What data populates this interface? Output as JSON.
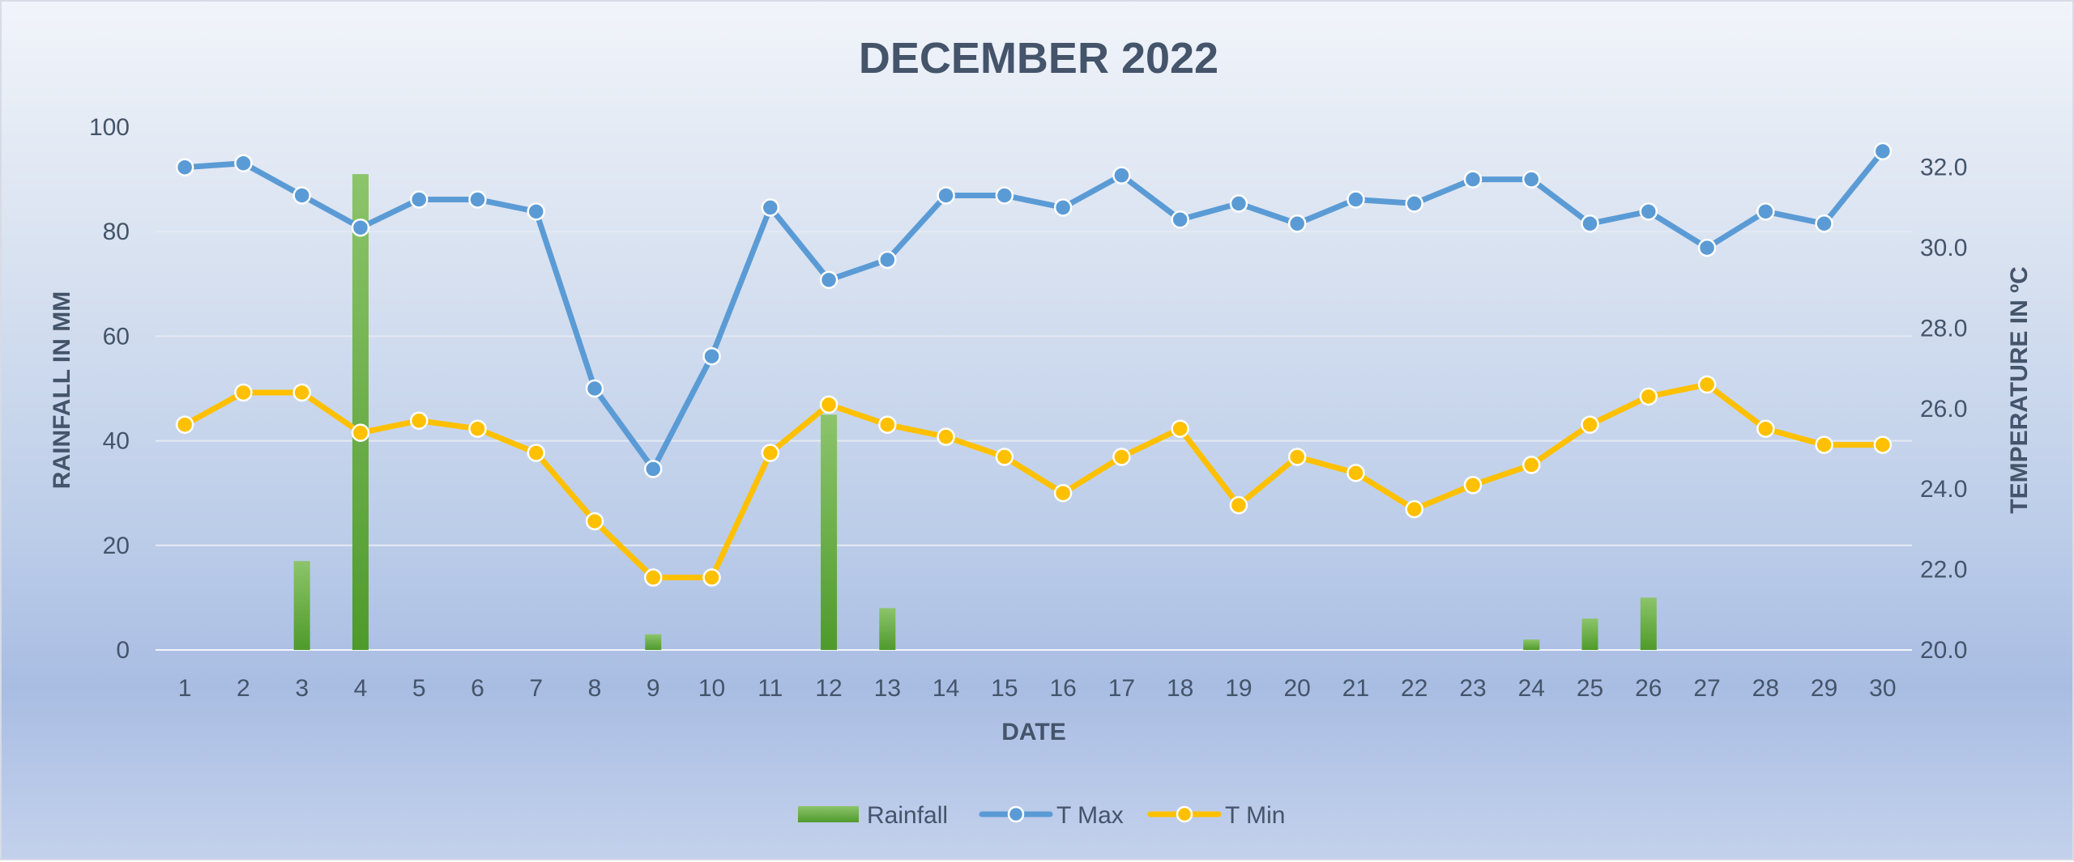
{
  "chart_data": {
    "type": "bar",
    "title": "DECEMBER 2022",
    "xlabel": "DATE",
    "ylabel": "RAINFALL IN MM",
    "y2label": "TEMPERATURE IN ºC",
    "categories": [
      "1",
      "2",
      "3",
      "4",
      "5",
      "6",
      "7",
      "8",
      "9",
      "10",
      "11",
      "12",
      "13",
      "14",
      "15",
      "16",
      "17",
      "18",
      "19",
      "20",
      "21",
      "22",
      "23",
      "24",
      "25",
      "26",
      "27",
      "28",
      "29",
      "30"
    ],
    "ylim": [
      0,
      100
    ],
    "y2lim": [
      20,
      33
    ],
    "y_ticks": [
      "0",
      "20",
      "40",
      "60",
      "80",
      "100"
    ],
    "y2_ticks": [
      "20.0",
      "22.0",
      "24.0",
      "26.0",
      "28.0",
      "30.0",
      "32.0"
    ],
    "grid": true,
    "legend_position": "bottom",
    "series": [
      {
        "name": "Rainfall",
        "type": "bar",
        "axis": "left",
        "color": "#70ad47",
        "values": [
          0,
          0,
          17,
          91,
          0,
          0,
          0,
          0,
          3,
          0,
          0,
          45,
          8,
          0,
          0,
          0,
          0,
          0,
          0,
          0,
          0,
          0,
          0,
          2,
          6,
          10,
          0,
          0,
          0,
          0
        ]
      },
      {
        "name": "T Max",
        "type": "line",
        "axis": "right",
        "color": "#5b9bd5",
        "values": [
          32.0,
          32.1,
          31.3,
          30.5,
          31.2,
          31.2,
          30.9,
          26.5,
          24.5,
          27.3,
          31.0,
          29.2,
          29.7,
          31.3,
          31.3,
          31.0,
          31.8,
          30.7,
          31.1,
          30.6,
          31.2,
          31.1,
          31.7,
          31.7,
          30.6,
          30.9,
          30.0,
          30.9,
          30.6,
          32.4
        ]
      },
      {
        "name": "T Min",
        "type": "line",
        "axis": "right",
        "color": "#ffc000",
        "values": [
          25.6,
          26.4,
          26.4,
          25.4,
          25.7,
          25.5,
          24.9,
          23.2,
          21.8,
          21.8,
          24.9,
          26.1,
          25.6,
          25.3,
          24.8,
          23.9,
          24.8,
          25.5,
          23.6,
          24.8,
          24.4,
          23.5,
          24.1,
          24.6,
          25.6,
          26.3,
          26.6,
          25.5,
          25.1,
          25.1
        ]
      }
    ]
  }
}
